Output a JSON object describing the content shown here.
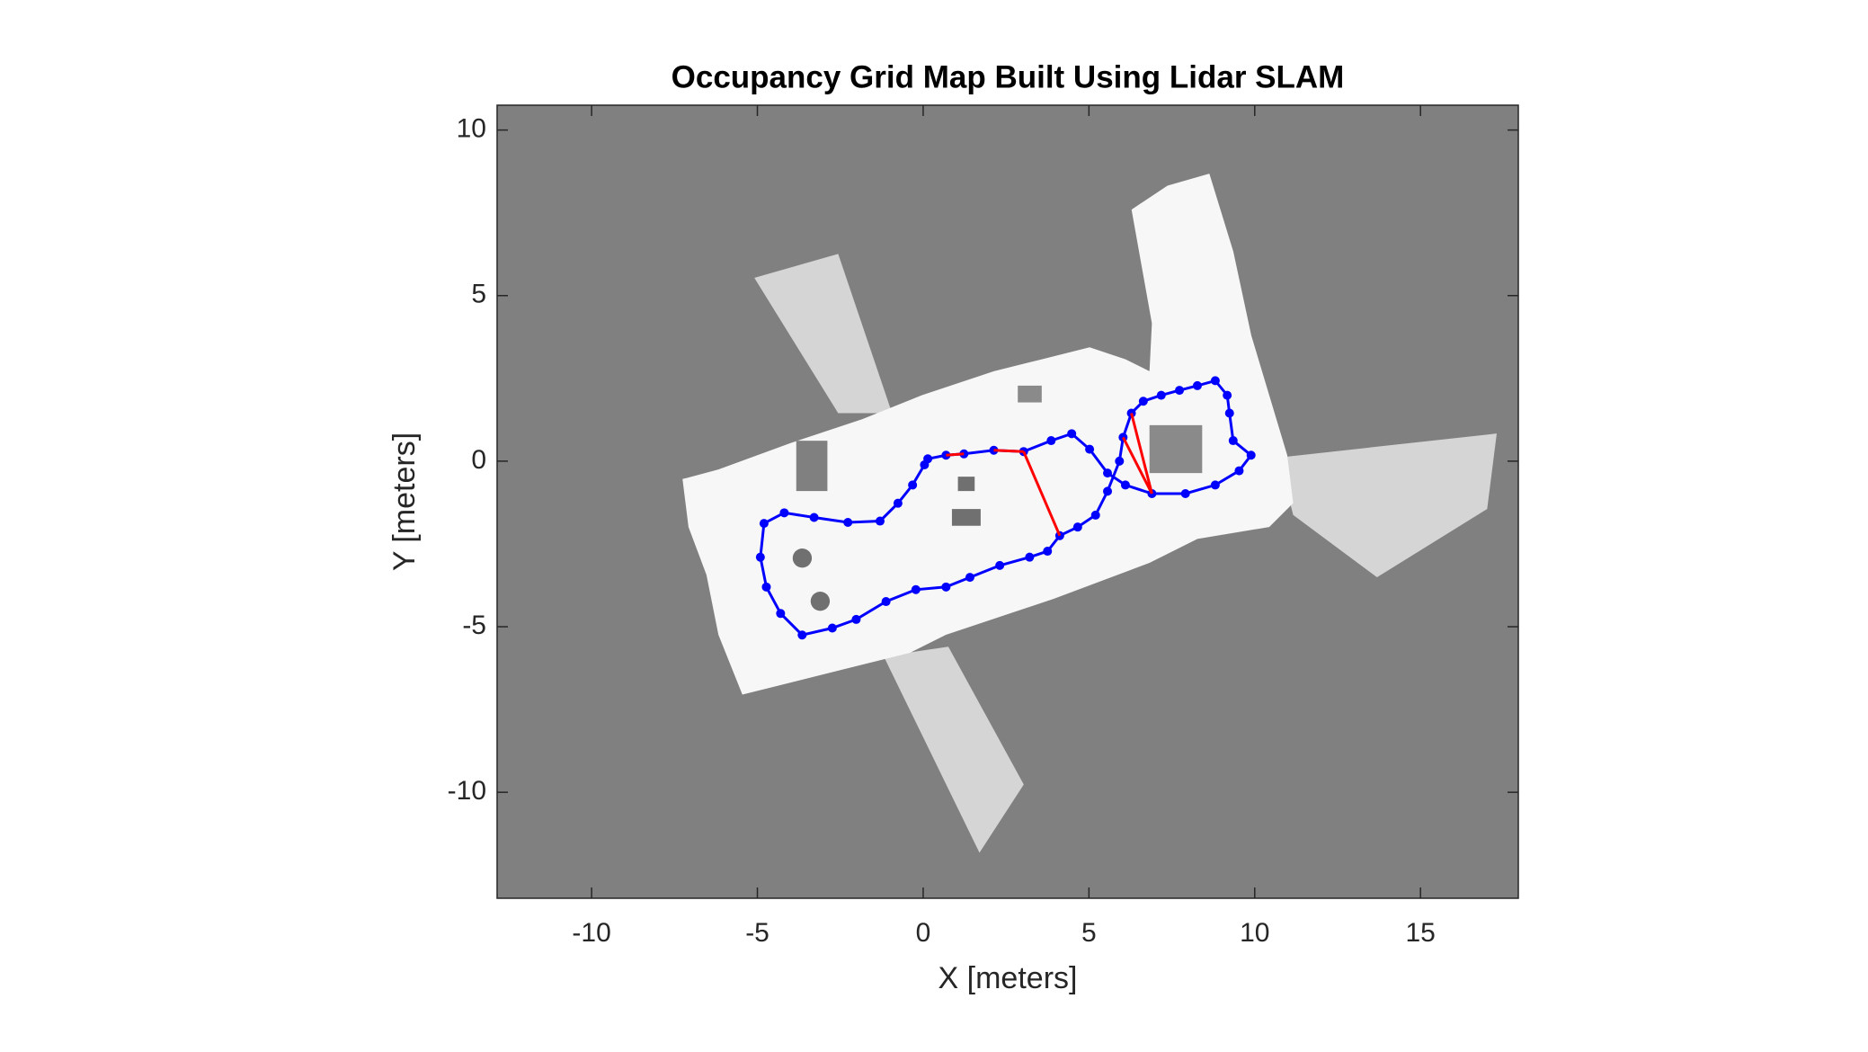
{
  "chart_data": {
    "type": "line",
    "title": "Occupancy Grid Map Built Using Lidar SLAM",
    "xlabel": "X [meters]",
    "ylabel": "Y [meters]",
    "xlim": [
      -12.85,
      17.95
    ],
    "ylim": [
      -13.2,
      10.75
    ],
    "xticks": [
      -10,
      -5,
      0,
      5,
      10,
      15
    ],
    "yticks": [
      -10,
      -5,
      0,
      5,
      10
    ],
    "grid": false,
    "series": [
      {
        "color": "#0000ff",
        "markers": true,
        "x": [
          0.14,
          0.69,
          1.23,
          2.13,
          3.03,
          3.86,
          4.48,
          5.02,
          5.56,
          6.1,
          6.9,
          7.91,
          8.81,
          9.53,
          9.89,
          9.35,
          9.24,
          9.17,
          8.81,
          8.27,
          7.73,
          7.18,
          6.64,
          6.28,
          6.03,
          5.92,
          5.56,
          5.2,
          4.66,
          4.12,
          3.75,
          3.21,
          2.31,
          1.41,
          0.69,
          -0.22,
          -1.12,
          -2.02,
          -2.74,
          -3.65,
          -4.3,
          -4.73,
          -4.91,
          -4.8,
          -4.19,
          -3.29,
          -2.27,
          -1.3,
          -0.76,
          -0.32,
          0.04
        ],
        "y": [
          0.07,
          0.18,
          0.22,
          0.33,
          0.29,
          0.62,
          0.83,
          0.36,
          -0.36,
          -0.72,
          -0.98,
          -0.98,
          -0.72,
          -0.29,
          0.18,
          0.62,
          1.45,
          1.99,
          2.43,
          2.28,
          2.14,
          1.99,
          1.81,
          1.45,
          0.72,
          0.0,
          -0.91,
          -1.63,
          -1.99,
          -2.25,
          -2.72,
          -2.9,
          -3.15,
          -3.51,
          -3.8,
          -3.88,
          -4.24,
          -4.78,
          -5.04,
          -5.25,
          -4.6,
          -3.8,
          -2.9,
          -1.88,
          -1.56,
          -1.7,
          -1.85,
          -1.81,
          -1.27,
          -0.72,
          -0.11
        ]
      },
      {
        "color": "#ff0000",
        "markers": false,
        "x": [
          3.03,
          4.12,
          null,
          6.03,
          6.9,
          null,
          6.28,
          6.9,
          null,
          0.69,
          1.23,
          null,
          2.13,
          3.03
        ],
        "y": [
          0.29,
          -2.25,
          null,
          0.72,
          -0.98,
          null,
          1.45,
          -0.98,
          null,
          0.18,
          0.22,
          null,
          0.33,
          0.29
        ]
      }
    ]
  }
}
